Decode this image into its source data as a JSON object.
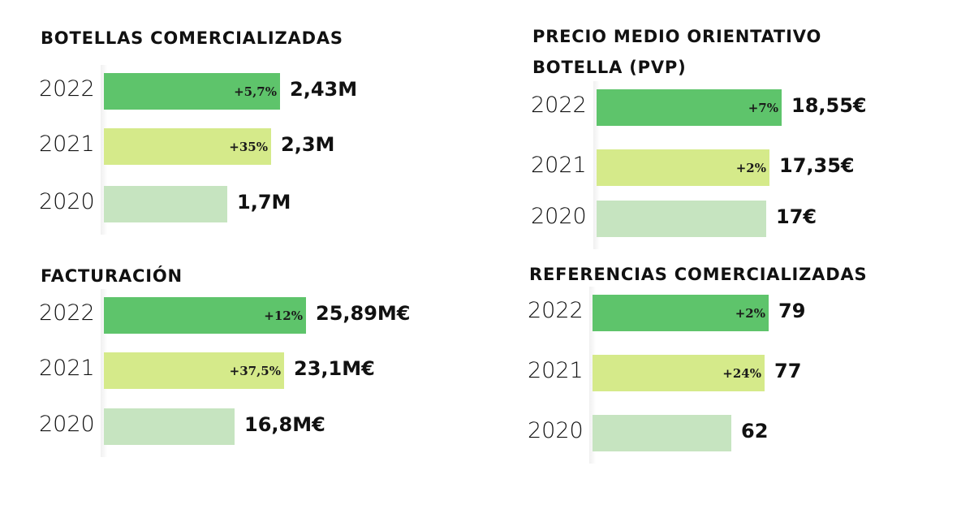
{
  "colors": {
    "2022": "#5ec46b",
    "2021": "#d5ea8a",
    "2020": "#c6e4c0"
  },
  "chart_data": [
    {
      "type": "bar",
      "title": "BOTELLAS COMERCIALIZADAS",
      "categories": [
        "2022",
        "2021",
        "2020"
      ],
      "values": [
        2.43,
        2.3,
        1.7
      ],
      "value_labels": [
        "2,43M",
        "2,3M",
        "1,7M"
      ],
      "change_labels": [
        "+5,7%",
        "+35%",
        ""
      ]
    },
    {
      "type": "bar",
      "title": "PRECIO MEDIO ORIENTATIVO BOTELLA (PVP)",
      "title_lines": [
        "PRECIO MEDIO ORIENTATIVO",
        "BOTELLA (PVP)"
      ],
      "categories": [
        "2022",
        "2021",
        "2020"
      ],
      "values": [
        18.55,
        17.35,
        17
      ],
      "value_labels": [
        "18,55€",
        "17,35€",
        "17€"
      ],
      "change_labels": [
        "+7%",
        "+2%",
        ""
      ]
    },
    {
      "type": "bar",
      "title": "FACTURACIÓN",
      "categories": [
        "2022",
        "2021",
        "2020"
      ],
      "values": [
        25.89,
        23.1,
        16.8
      ],
      "value_labels": [
        "25,89M€",
        "23,1M€",
        "16,8M€"
      ],
      "change_labels": [
        "+12%",
        "+37,5%",
        ""
      ]
    },
    {
      "type": "bar",
      "title": "REFERENCIAS COMERCIALIZADAS",
      "categories": [
        "2022",
        "2021",
        "2020"
      ],
      "values": [
        79,
        77,
        62
      ],
      "value_labels": [
        "79",
        "77",
        "62"
      ],
      "change_labels": [
        "+2%",
        "+24%",
        ""
      ]
    }
  ]
}
